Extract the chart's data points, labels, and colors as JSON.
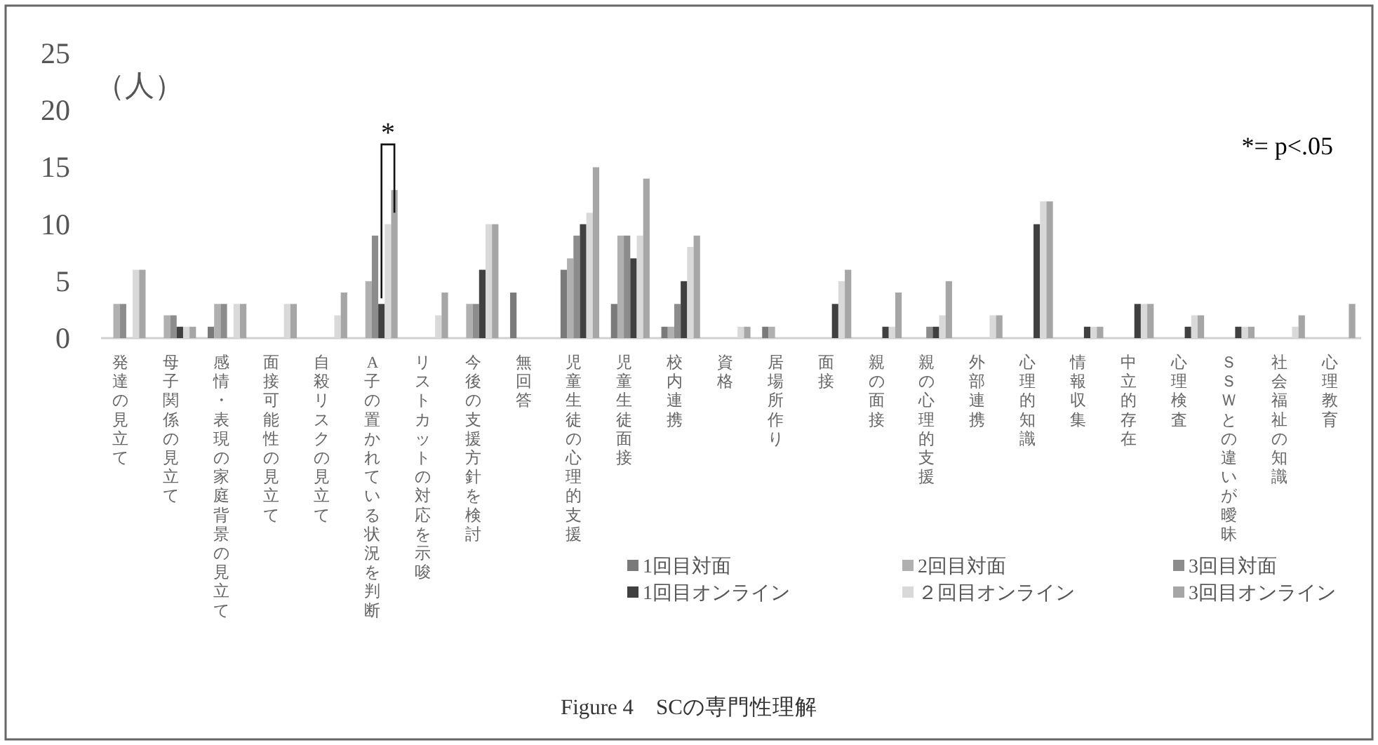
{
  "chart_data": {
    "type": "bar",
    "title": "Figure 4　SCの専門性理解",
    "ylabel": "（人）",
    "categories": [
      "発達の見立て",
      "母子関係の見立て",
      "感情・表現の家庭背景の見立て",
      "面接可能性の見立て",
      "自殺リスクの見立て",
      "A子の置かれている状況を判断",
      "リストカットの対応を示唆",
      "今後の支援方針を検討",
      "無回答",
      "児童生徒の心理的支援",
      "児童生徒面接",
      "校内連携",
      "資格",
      "居場所作り",
      "面接",
      "親の面接",
      "親の心理的支援",
      "外部連携",
      "心理的知識",
      "情報収集",
      "中立的存在",
      "心理検査",
      "ＳＳＷとの違いが曖昧",
      "社会福祉の知識",
      "心理教育"
    ],
    "series": [
      {
        "name": "1回目対面",
        "color": "#7a7a7a",
        "values": [
          0,
          0,
          1,
          0,
          0,
          0,
          0,
          0,
          4,
          6,
          3,
          1,
          0,
          1,
          0,
          0,
          0,
          0,
          0,
          0,
          0,
          0,
          0,
          0,
          0
        ]
      },
      {
        "name": "2回目対面",
        "color": "#b0b0b0",
        "values": [
          3,
          2,
          3,
          0,
          0,
          5,
          0,
          3,
          0,
          7,
          9,
          1,
          0,
          1,
          0,
          0,
          0,
          0,
          0,
          0,
          0,
          0,
          0,
          0,
          0
        ]
      },
      {
        "name": "3回目対面",
        "color": "#8c8c8c",
        "values": [
          3,
          2,
          3,
          0,
          0,
          9,
          0,
          3,
          0,
          9,
          9,
          3,
          0,
          0,
          0,
          0,
          1,
          0,
          0,
          0,
          0,
          0,
          0,
          0,
          0
        ]
      },
      {
        "name": "1回目オンライン",
        "color": "#404040",
        "values": [
          0,
          1,
          0,
          0,
          0,
          3,
          0,
          6,
          0,
          10,
          7,
          5,
          0,
          0,
          3,
          1,
          1,
          0,
          10,
          1,
          3,
          1,
          1,
          0,
          0
        ]
      },
      {
        "name": "２回目オンライン",
        "color": "#d9d9d9",
        "values": [
          6,
          1,
          3,
          3,
          2,
          10,
          2,
          10,
          0,
          11,
          9,
          8,
          1,
          0,
          5,
          1,
          2,
          2,
          12,
          1,
          3,
          2,
          1,
          1,
          0
        ]
      },
      {
        "name": "3回目オンライン",
        "color": "#a6a6a6",
        "values": [
          6,
          1,
          3,
          3,
          4,
          13,
          4,
          10,
          0,
          15,
          14,
          9,
          1,
          0,
          6,
          4,
          5,
          2,
          12,
          1,
          3,
          2,
          1,
          2,
          3
        ]
      }
    ],
    "ylim": [
      0,
      25
    ],
    "yticks": [
      0,
      5,
      10,
      15,
      20,
      25
    ],
    "grid": false,
    "legend": "bottom",
    "annotations": [
      "*",
      "*= p<.05"
    ]
  }
}
